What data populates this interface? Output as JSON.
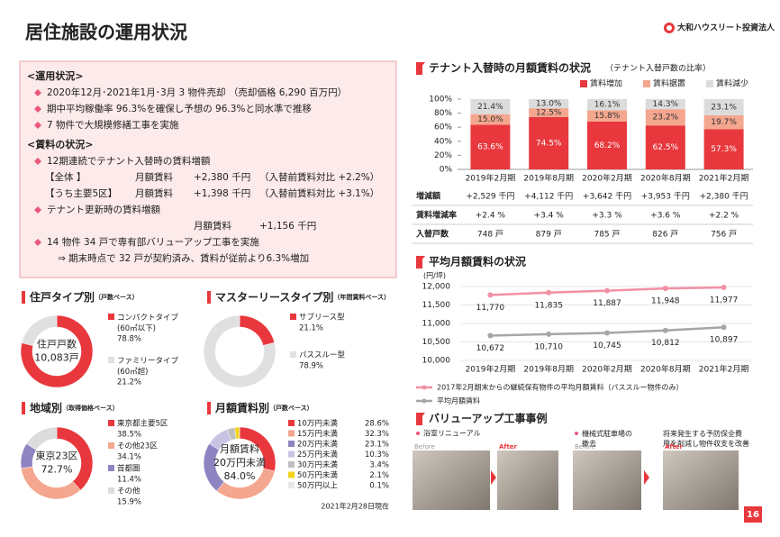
{
  "header": {
    "title": "居住施設の運用状況",
    "company": "大和ハウスリート投資法人",
    "page": "16"
  },
  "summary": {
    "heading_operations": "<運用状況>",
    "operations": [
      "2020年12月･2021年1月･3月 3 物件売却 （売却価格 6,290 百万円）",
      "期中平均稼働率 96.3%を確保し予想の 96.3%と同水準で推移",
      "7 物件で大規模修繕工事を実施"
    ],
    "heading_rent": "<賃料の状況>",
    "rent_lines": [
      {
        "text": "12期連続でテナント入替時の賃料増額"
      },
      {
        "cells": [
          "【全体 】",
          "月額賃料",
          "+2,380 千円",
          "（入替前賃料対比 +2.2%）"
        ]
      },
      {
        "cells": [
          "【うち主要5区】",
          "月額賃料",
          "+1,398 千円",
          "（入替前賃料対比 +3.1%）"
        ]
      },
      {
        "text": "テナント更新時の賃料増額"
      },
      {
        "cells": [
          "月額賃料",
          "+1,156 千円"
        ]
      },
      {
        "text": "14 物件 34 戸で専有部バリューアップ工事を実施"
      },
      {
        "note": "⇒ 期末時点で 32 戸が契約済み、賃料が従前より6.3%増加"
      }
    ]
  },
  "chart_data": [
    {
      "type": "bar",
      "stacked": true,
      "title": "テナント入替時の月額賃料の状況",
      "subtitle": "（テナント入替戸数の比率）",
      "categories": [
        "2019年2月期",
        "2019年8月期",
        "2020年2月期",
        "2020年8月期",
        "2021年2月期"
      ],
      "series": [
        {
          "name": "賃料増加",
          "color": "#e8383d",
          "values": [
            63.6,
            74.5,
            68.2,
            62.5,
            57.3
          ],
          "value_labels": [
            "63.6%",
            "74.5%",
            "68.2%",
            "62.5%",
            "57.3%"
          ]
        },
        {
          "name": "賃料据置",
          "color": "#f4a68e",
          "values": [
            15.0,
            12.5,
            15.8,
            23.2,
            19.7
          ],
          "value_labels": [
            "15.0%",
            "12.5%",
            "15.8%",
            "23.2%",
            "19.7%"
          ]
        },
        {
          "name": "賃料減少",
          "color": "#dcdcdc",
          "values": [
            21.4,
            13.0,
            16.1,
            14.3,
            23.1
          ],
          "value_labels": [
            "21.4%",
            "13.0%",
            "16.1%",
            "14.3%",
            "23.1%"
          ]
        }
      ],
      "ylim": [
        0,
        100
      ],
      "yticks": [
        {
          "value": 0,
          "label": "0%"
        },
        {
          "value": 20,
          "label": "20%"
        },
        {
          "value": 40,
          "label": "40%"
        },
        {
          "value": 60,
          "label": "60%"
        },
        {
          "value": 80,
          "label": "80%"
        },
        {
          "value": 100,
          "label": "100%"
        }
      ],
      "table": {
        "rows": [
          {
            "label": "増減額",
            "cells": [
              "+2,529 千円",
              "+4,112 千円",
              "+3,642 千円",
              "+3,953 千円",
              "+2,380 千円"
            ]
          },
          {
            "label": "賃料増減率",
            "cells": [
              "+2.4 %",
              "+3.4 %",
              "+3.3 %",
              "+3.6 %",
              "+2.2 %"
            ]
          },
          {
            "label": "入替戸数",
            "cells": [
              "748 戸",
              "879 戸",
              "785 戸",
              "826 戸",
              "756 戸"
            ]
          }
        ]
      }
    },
    {
      "type": "line",
      "title": "平均月額賃料の状況",
      "ylabel": "(円/坪)",
      "grid": true,
      "categories": [
        "2019年2月期",
        "2019年8月期",
        "2020年2月期",
        "2020年8月期",
        "2021年2月期"
      ],
      "series": [
        {
          "name": "2017年2月期末からの継続保有物件の平均月額賃料（パススルー物件のみ）",
          "color": "#f290a4",
          "values": [
            11770,
            11835,
            11887,
            11948,
            11977
          ],
          "value_labels": [
            "11,770",
            "11,835",
            "11,887",
            "11,948",
            "11,977"
          ]
        },
        {
          "name": "平均月額賃料",
          "color": "#a6a6a6",
          "values": [
            10672,
            10710,
            10745,
            10812,
            10897
          ],
          "value_labels": [
            "10,672",
            "10,710",
            "10,745",
            "10,812",
            "10,897"
          ]
        }
      ],
      "ylim": [
        10000,
        12000
      ],
      "yticks": [
        {
          "value": 10000,
          "label": "10,000"
        },
        {
          "value": 10500,
          "label": "10,500"
        },
        {
          "value": 11000,
          "label": "11,000"
        },
        {
          "value": 11500,
          "label": "11,500"
        },
        {
          "value": 12000,
          "label": "12,000"
        }
      ]
    },
    {
      "type": "pie",
      "donut": true,
      "title": "住戸タイプ別",
      "subtitle": "（戸数ベース）",
      "center_text": [
        "住戸戸数",
        "10,083戸"
      ],
      "categories": [
        "コンパクトタイプ (60㎡以下)",
        "ファミリータイプ (60㎡超)"
      ],
      "values": [
        78.8,
        21.2
      ],
      "value_labels": [
        "78.8%",
        "21.2%"
      ],
      "colors": [
        "#e8383d",
        "#e0e0e0"
      ]
    },
    {
      "type": "pie",
      "donut": true,
      "title": "マスターリースタイプ別",
      "subtitle": "（年間賃料ベース）",
      "categories": [
        "サブリース型",
        "パススルー型"
      ],
      "values": [
        21.1,
        78.9
      ],
      "value_labels": [
        "21.1%",
        "78.9%"
      ],
      "colors": [
        "#e8383d",
        "#e0e0e0"
      ]
    },
    {
      "type": "pie",
      "donut": true,
      "title": "地域別",
      "subtitle": "（取得価格ベース）",
      "center_text": [
        "東京23区",
        "72.7%"
      ],
      "categories": [
        "東京都主要5区",
        "その他23区",
        "首都圏",
        "その他"
      ],
      "values": [
        38.5,
        34.1,
        11.4,
        15.9
      ],
      "value_labels": [
        "38.5%",
        "34.1%",
        "11.4%",
        "15.9%"
      ],
      "colors": [
        "#e8383d",
        "#f4a68e",
        "#8f84c2",
        "#dcdcdc"
      ]
    },
    {
      "type": "pie",
      "donut": true,
      "title": "月額賃料別",
      "subtitle": "（戸数ベース）",
      "center_text": [
        "月額賃料",
        "20万円未満",
        "84.0%"
      ],
      "categories": [
        "10万円未満",
        "15万円未満",
        "20万円未満",
        "25万円未満",
        "30万円未満",
        "50万円未満",
        "50万円以上"
      ],
      "values": [
        28.6,
        32.3,
        23.1,
        10.3,
        3.4,
        2.1,
        0.1
      ],
      "value_labels": [
        "28.6%",
        "32.3%",
        "23.1%",
        "10.3%",
        "3.4%",
        "2.1%",
        "0.1%"
      ],
      "colors": [
        "#e8383d",
        "#f4a68e",
        "#8f84c2",
        "#c9c2e3",
        "#bfbfbf",
        "#f3d21a",
        "#e6e6e6"
      ]
    }
  ],
  "as_of": "2021年2月28日現在",
  "value_up": {
    "title": "バリューアップ工事事例",
    "items": [
      "浴室リニューアル",
      "機械式駐車場の撤去",
      "将来発生する予防保全費用を削減し物件収支を改善"
    ],
    "photo_labels": [
      "Before",
      "After",
      "Before",
      "After"
    ]
  }
}
